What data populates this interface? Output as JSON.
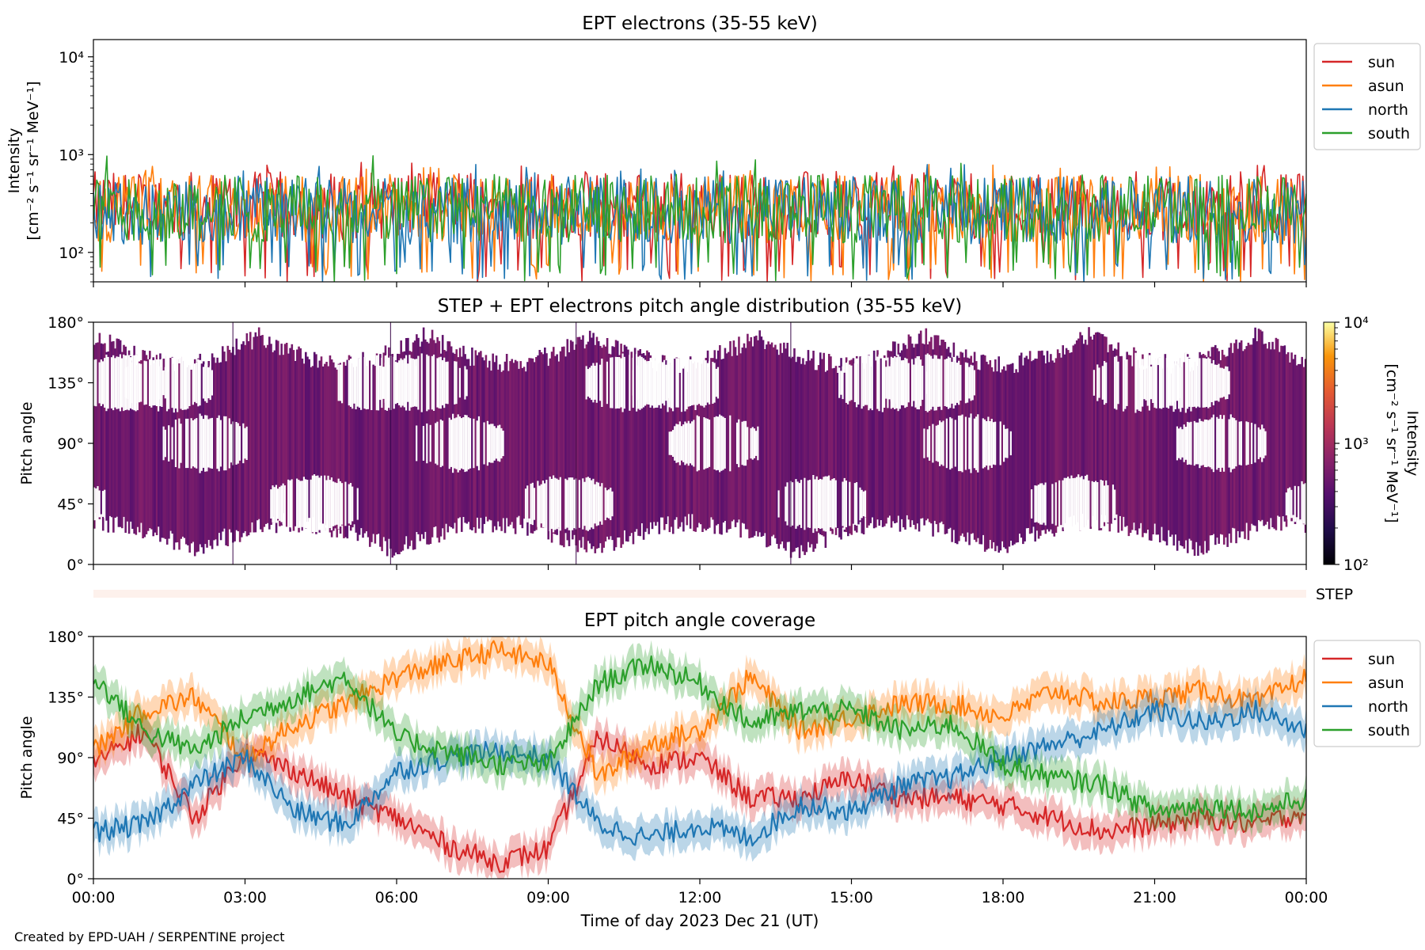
{
  "footer": "Created by EPD-UAH / SERPENTINE project",
  "colors": {
    "sun": "#d62728",
    "asun": "#ff7f0e",
    "north": "#1f77b4",
    "south": "#2ca02c"
  },
  "chart_data": [
    {
      "type": "line",
      "title": "EPT electrons (35-55 keV)",
      "ylabel": "Intensity",
      "ylabel_units": "[cm⁻² s⁻¹ sr⁻¹ MeV⁻¹]",
      "yscale": "log",
      "ylim": [
        50,
        15000
      ],
      "y_ticks": [
        "10²",
        "10³",
        "10⁴"
      ],
      "xlim": [
        "2023-12-21T00:00",
        "2023-12-22T00:00"
      ],
      "legend": {
        "placement": "outside-right",
        "entries": [
          "sun",
          "asun",
          "north",
          "south"
        ]
      },
      "series": [
        {
          "name": "sun",
          "typical": 300,
          "min": 50,
          "max": 950
        },
        {
          "name": "asun",
          "typical": 280,
          "min": 50,
          "max": 800
        },
        {
          "name": "north",
          "typical": 270,
          "min": 50,
          "max": 800
        },
        {
          "name": "south",
          "typical": 280,
          "min": 50,
          "max": 1000
        }
      ]
    },
    {
      "type": "heatmap",
      "title": "STEP + EPT electrons pitch angle distribution (35-55 keV)",
      "ylabel": "Pitch angle",
      "ylim": [
        0,
        180
      ],
      "y_ticks": [
        "0°",
        "45°",
        "90°",
        "135°",
        "180°"
      ],
      "xlim": [
        "2023-12-21T00:00",
        "2023-12-22T00:00"
      ],
      "colorbar": {
        "label": "Intensity",
        "units": "[cm⁻² s⁻¹ sr⁻¹ MeV⁻¹]",
        "scale": "log",
        "range": [
          100,
          10000
        ],
        "ticks": [
          "10²",
          "10³",
          "10⁴"
        ]
      },
      "step_strip_label": "STEP"
    },
    {
      "type": "line",
      "title": "EPT pitch angle coverage",
      "ylabel": "Pitch angle",
      "ylim": [
        0,
        180
      ],
      "y_ticks": [
        "0°",
        "45°",
        "90°",
        "135°",
        "180°"
      ],
      "xlabel": "Time of day 2023 Dec 21 (UT)",
      "x_ticks": [
        "00:00",
        "03:00",
        "06:00",
        "09:00",
        "12:00",
        "15:00",
        "18:00",
        "21:00",
        "00:00"
      ],
      "legend": {
        "placement": "outside-right",
        "entries": [
          "sun",
          "asun",
          "north",
          "south"
        ]
      },
      "band_halfwidth": 12,
      "series": [
        {
          "name": "sun",
          "x": [
            "2023-12-21T00:00",
            "2023-12-21T01:00",
            "2023-12-21T02:00",
            "2023-12-21T03:00",
            "2023-12-21T04:00",
            "2023-12-21T05:00",
            "2023-12-21T06:00",
            "2023-12-21T07:00",
            "2023-12-21T08:00",
            "2023-12-21T09:00",
            "2023-12-21T10:00",
            "2023-12-21T11:00",
            "2023-12-21T12:00",
            "2023-12-21T13:00",
            "2023-12-21T14:00",
            "2023-12-21T15:00",
            "2023-12-21T16:00",
            "2023-12-21T17:00",
            "2023-12-21T18:00",
            "2023-12-21T19:00",
            "2023-12-21T20:00",
            "2023-12-21T21:00",
            "2023-12-21T22:00",
            "2023-12-21T23:00",
            "2023-12-22T00:00"
          ],
          "y": [
            85,
            110,
            45,
            95,
            80,
            60,
            45,
            25,
            12,
            22,
            105,
            85,
            90,
            60,
            60,
            75,
            60,
            60,
            55,
            45,
            35,
            40,
            45,
            40,
            50
          ]
        },
        {
          "name": "asun",
          "x": [
            "2023-12-21T00:00",
            "2023-12-21T01:00",
            "2023-12-21T02:00",
            "2023-12-21T03:00",
            "2023-12-21T04:00",
            "2023-12-21T05:00",
            "2023-12-21T06:00",
            "2023-12-21T07:00",
            "2023-12-21T08:00",
            "2023-12-21T09:00",
            "2023-12-21T10:00",
            "2023-12-21T11:00",
            "2023-12-21T12:00",
            "2023-12-21T13:00",
            "2023-12-21T14:00",
            "2023-12-21T15:00",
            "2023-12-21T16:00",
            "2023-12-21T17:00",
            "2023-12-21T18:00",
            "2023-12-21T19:00",
            "2023-12-21T20:00",
            "2023-12-21T21:00",
            "2023-12-21T22:00",
            "2023-12-21T23:00",
            "2023-12-22T00:00"
          ],
          "y": [
            95,
            125,
            135,
            90,
            115,
            130,
            150,
            160,
            170,
            160,
            75,
            100,
            110,
            150,
            110,
            120,
            130,
            130,
            120,
            140,
            130,
            135,
            140,
            130,
            150
          ]
        },
        {
          "name": "north",
          "x": [
            "2023-12-21T00:00",
            "2023-12-21T01:00",
            "2023-12-21T02:00",
            "2023-12-21T03:00",
            "2023-12-21T04:00",
            "2023-12-21T05:00",
            "2023-12-21T06:00",
            "2023-12-21T07:00",
            "2023-12-21T08:00",
            "2023-12-21T09:00",
            "2023-12-21T10:00",
            "2023-12-21T11:00",
            "2023-12-21T12:00",
            "2023-12-21T13:00",
            "2023-12-21T14:00",
            "2023-12-21T15:00",
            "2023-12-21T16:00",
            "2023-12-21T17:00",
            "2023-12-21T18:00",
            "2023-12-21T19:00",
            "2023-12-21T20:00",
            "2023-12-21T21:00",
            "2023-12-21T22:00",
            "2023-12-21T23:00",
            "2023-12-22T00:00"
          ],
          "y": [
            35,
            40,
            70,
            90,
            50,
            40,
            80,
            90,
            95,
            90,
            40,
            30,
            40,
            30,
            55,
            50,
            70,
            75,
            90,
            100,
            110,
            125,
            115,
            125,
            110
          ]
        },
        {
          "name": "south",
          "x": [
            "2023-12-21T00:00",
            "2023-12-21T01:00",
            "2023-12-21T02:00",
            "2023-12-21T03:00",
            "2023-12-21T04:00",
            "2023-12-21T05:00",
            "2023-12-21T06:00",
            "2023-12-21T07:00",
            "2023-12-21T08:00",
            "2023-12-21T09:00",
            "2023-12-21T10:00",
            "2023-12-21T11:00",
            "2023-12-21T12:00",
            "2023-12-21T13:00",
            "2023-12-21T14:00",
            "2023-12-21T15:00",
            "2023-12-21T16:00",
            "2023-12-21T17:00",
            "2023-12-21T18:00",
            "2023-12-21T19:00",
            "2023-12-21T20:00",
            "2023-12-21T21:00",
            "2023-12-21T22:00",
            "2023-12-21T23:00",
            "2023-12-22T00:00"
          ],
          "y": [
            150,
            110,
            95,
            120,
            135,
            150,
            105,
            95,
            85,
            85,
            145,
            160,
            145,
            115,
            125,
            125,
            110,
            115,
            85,
            75,
            70,
            50,
            55,
            50,
            60
          ]
        }
      ]
    }
  ]
}
